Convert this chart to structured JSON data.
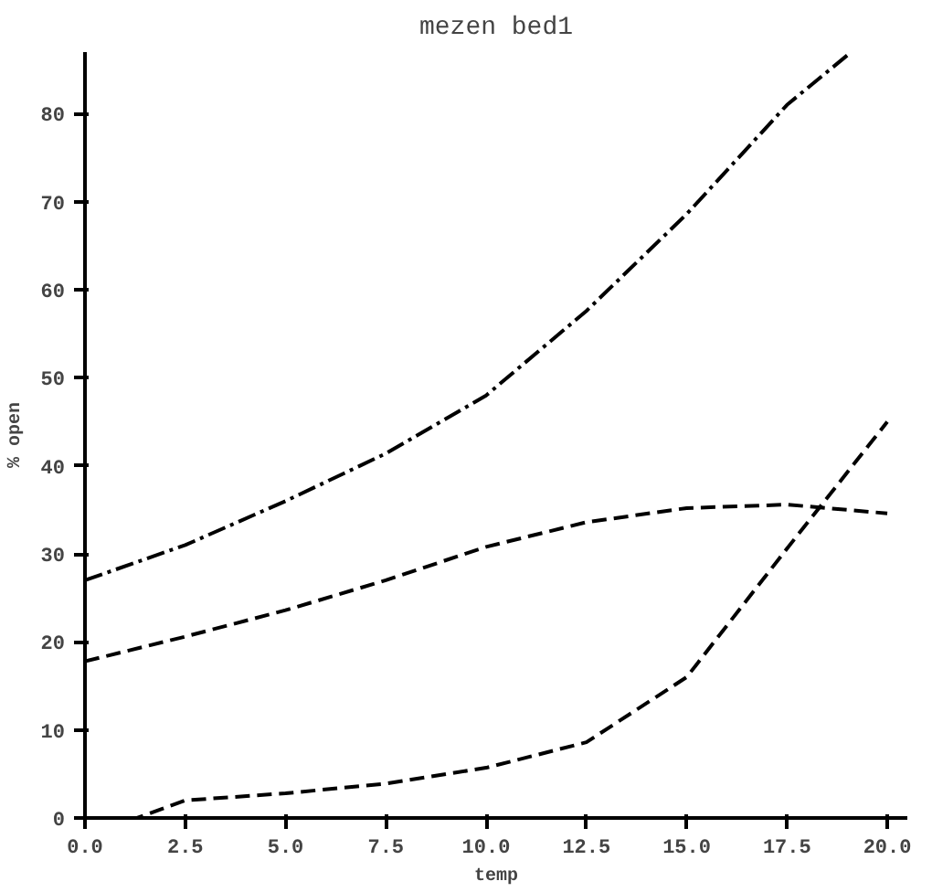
{
  "chart_data": {
    "type": "line",
    "title": "mezen bed1",
    "xlabel": "temp",
    "ylabel": "% open",
    "xlim": [
      0,
      20.5
    ],
    "ylim": [
      0,
      87
    ],
    "xticks": [
      {
        "value": 0,
        "label": "0.0"
      },
      2.5,
      {
        "value": 5,
        "label": "5.0"
      },
      7.5,
      {
        "value": 10,
        "label": "10.0"
      },
      12.5,
      {
        "value": 15,
        "label": "15.0"
      },
      17.5,
      {
        "value": 20,
        "label": "20.0"
      }
    ],
    "yticks": [
      0,
      10,
      20,
      30,
      40,
      50,
      60,
      70,
      80
    ],
    "grid": false,
    "marker": "none",
    "series": [
      {
        "color": "#000000",
        "line_style": "dashdot",
        "x": [
          0,
          2.5,
          5,
          7.5,
          10,
          12.5,
          15,
          17.5,
          19.1
        ],
        "values": [
          27,
          31,
          36,
          41.4,
          48,
          57.6,
          68.6,
          81,
          87
        ]
      },
      {
        "color": "#000000",
        "line_style": "dashed",
        "x": [
          0,
          2.5,
          5,
          7.5,
          10,
          12.5,
          15,
          17.5,
          20
        ],
        "values": [
          17.8,
          20.6,
          23.6,
          27,
          30.8,
          33.6,
          35.2,
          35.6,
          34.6
        ]
      },
      {
        "color": "#000000",
        "line_style": "dashed",
        "x": [
          0,
          1.3,
          2.5,
          5,
          7.5,
          10,
          12.5,
          15,
          17.5,
          20
        ],
        "values": [
          0,
          0,
          2,
          2.8,
          3.9,
          5.7,
          8.6,
          16,
          30.6,
          45
        ]
      }
    ]
  }
}
